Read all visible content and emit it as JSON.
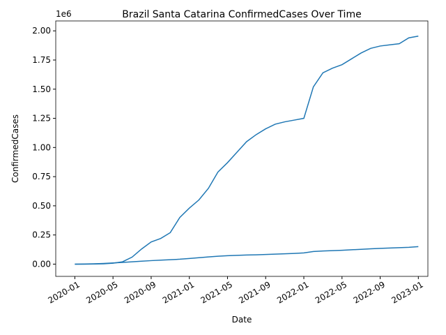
{
  "chart_data": {
    "type": "line",
    "title": "Brazil Santa Catarina ConfirmedCases Over Time",
    "x_label": "Date",
    "y_label": "ConfirmedCases",
    "y_offset_label": "1e6",
    "x": [
      "2020-01",
      "2020-02",
      "2020-03",
      "2020-04",
      "2020-05",
      "2020-06",
      "2020-07",
      "2020-08",
      "2020-09",
      "2020-10",
      "2020-11",
      "2020-12",
      "2021-01",
      "2021-02",
      "2021-03",
      "2021-04",
      "2021-05",
      "2021-06",
      "2021-07",
      "2021-08",
      "2021-09",
      "2021-10",
      "2021-11",
      "2021-12",
      "2022-01",
      "2022-02",
      "2022-03",
      "2022-04",
      "2022-05",
      "2022-06",
      "2022-07",
      "2022-08",
      "2022-09",
      "2022-10",
      "2022-11",
      "2022-12",
      "2023-01"
    ],
    "series": [
      {
        "color": "#1f77b4",
        "values": [
          0,
          0,
          1000,
          3000,
          8000,
          20000,
          60000,
          130000,
          190000,
          220000,
          270000,
          400000,
          480000,
          550000,
          650000,
          790000,
          870000,
          960000,
          1050000,
          1110000,
          1160000,
          1200000,
          1220000,
          1235000,
          1250000,
          1520000,
          1640000,
          1680000,
          1710000,
          1760000,
          1810000,
          1850000,
          1870000,
          1880000,
          1890000,
          1940000,
          1955000
        ]
      },
      {
        "color": "#1f77b4",
        "values": [
          0,
          1000,
          3000,
          6000,
          10000,
          15000,
          20000,
          25000,
          30000,
          34000,
          38000,
          42000,
          48000,
          55000,
          62000,
          68000,
          72000,
          75000,
          78000,
          80000,
          83000,
          86000,
          89000,
          92000,
          96000,
          108000,
          113000,
          116000,
          119000,
          123000,
          127000,
          131000,
          135000,
          138000,
          141000,
          144000,
          150000
        ]
      }
    ],
    "xlim": [
      "2019-11",
      "2023-02"
    ],
    "xticks": [
      "2020-01",
      "2020-05",
      "2020-09",
      "2021-01",
      "2021-05",
      "2021-09",
      "2022-01",
      "2022-05",
      "2022-09",
      "2023-01"
    ],
    "ylim": [
      -105000,
      2085000
    ],
    "yticks": [
      {
        "value": 0,
        "label": "0.00"
      },
      {
        "value": 250000,
        "label": "0.25"
      },
      {
        "value": 500000,
        "label": "0.50"
      },
      {
        "value": 750000,
        "label": "0.75"
      },
      {
        "value": 1000000,
        "label": "1.00"
      },
      {
        "value": 1250000,
        "label": "1.25"
      },
      {
        "value": 1500000,
        "label": "1.50"
      },
      {
        "value": 1750000,
        "label": "1.75"
      },
      {
        "value": 2000000,
        "label": "2.00"
      }
    ]
  }
}
